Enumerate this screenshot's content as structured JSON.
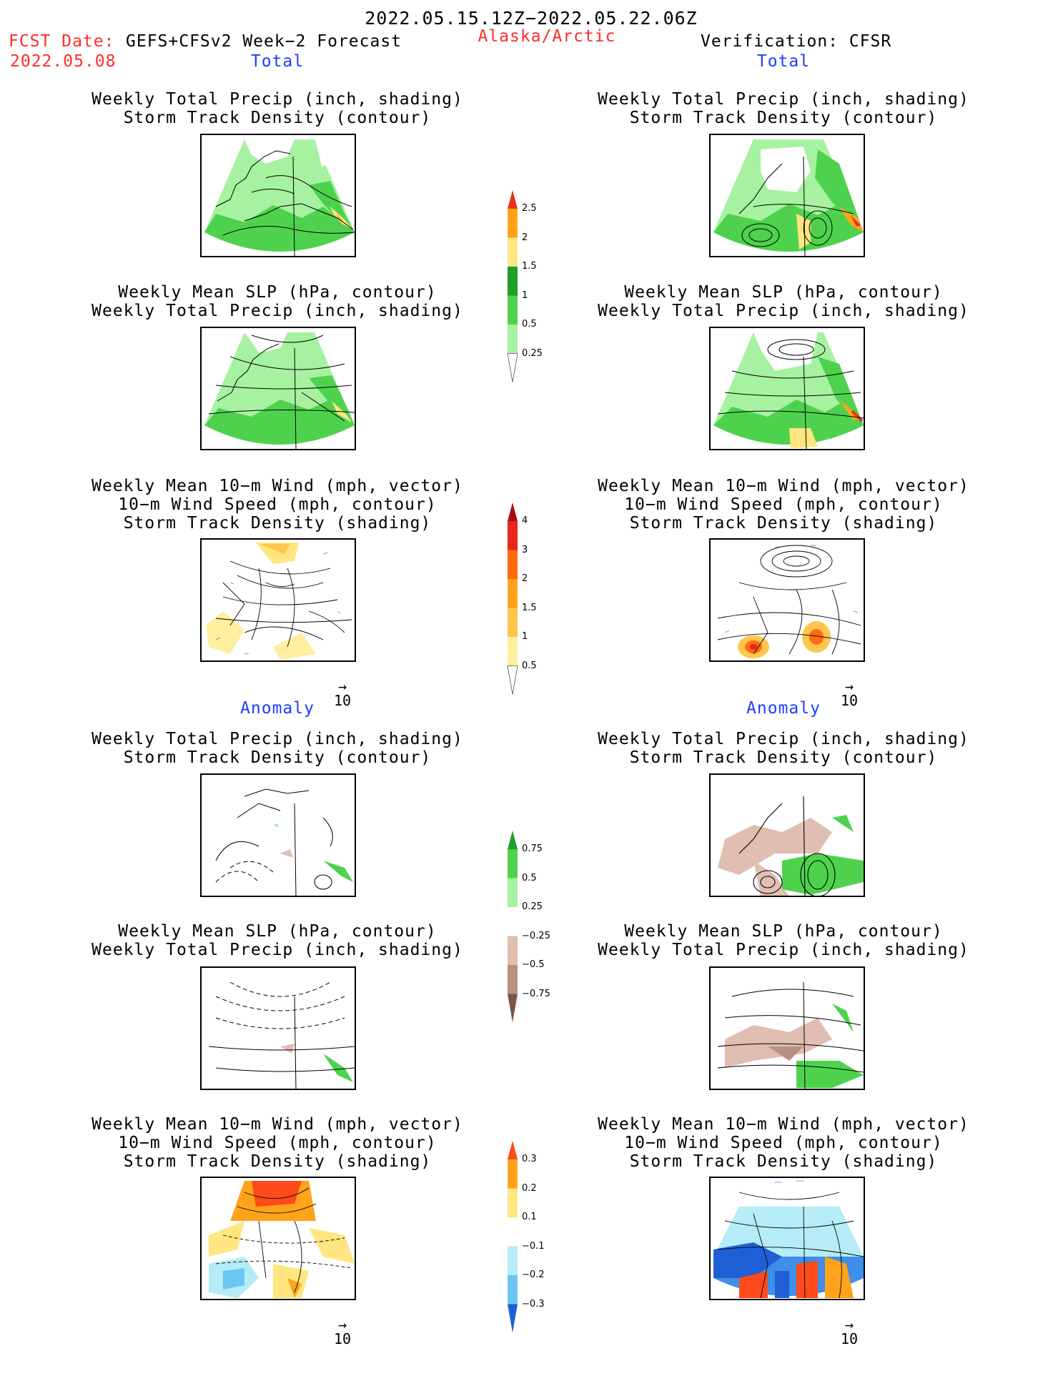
{
  "header": {
    "period": "2022.05.15.12Z−2022.05.22.06Z",
    "fcst_label": "FCST Date:",
    "model": "GEFS+CFSv2 Week−2 Forecast",
    "fcst_date": "2022.05.08",
    "region": "Alaska/Arctic",
    "verification": "Verification: CFSR"
  },
  "sections": {
    "total": "Total",
    "anomaly": "Anomaly"
  },
  "titles": {
    "precip_storm": [
      "Weekly Total Precip (inch, shading)",
      "Storm Track Density (contour)"
    ],
    "slp_precip": [
      "Weekly Mean SLP (hPa, contour)",
      "Weekly Total Precip (inch, shading)"
    ],
    "wind_storm": [
      "Weekly Mean 10−m Wind (mph, vector)",
      "10−m Wind Speed (mph, contour)",
      "Storm Track Density (shading)"
    ]
  },
  "vector_ref": "10",
  "colorbars": {
    "precip_total": {
      "labels": [
        "2.5",
        "2",
        "1.5",
        "1",
        "0.5",
        "0.25"
      ],
      "colors": [
        "#e8321e",
        "#ffa31a",
        "#ffe680",
        "#1f9e2a",
        "#4ed24e",
        "#a6f2a0"
      ]
    },
    "storm_total": {
      "labels": [
        "4",
        "3",
        "2",
        "1.5",
        "1",
        "0.5"
      ],
      "colors": [
        "#a50f15",
        "#e8261a",
        "#ff6a10",
        "#ffa31a",
        "#ffc54d",
        "#ffef9e"
      ]
    },
    "precip_anom": {
      "labels": [
        "0.75",
        "0.5",
        "0.25",
        "−0.25",
        "−0.5",
        "−0.75"
      ],
      "colors": [
        "#1f9e2a",
        "#4ed24e",
        "#a6f2a0",
        "#e0beb2",
        "#b98f80",
        "#7a5548"
      ]
    },
    "storm_anom": {
      "labels": [
        "0.3",
        "0.2",
        "0.1",
        "−0.1",
        "−0.2",
        "−0.3"
      ],
      "colors": [
        "#ff4a1a",
        "#ffa31a",
        "#ffe680",
        "#b5ecf7",
        "#6cc6f2",
        "#3d8fe8",
        "#1f5fd6"
      ]
    }
  }
}
